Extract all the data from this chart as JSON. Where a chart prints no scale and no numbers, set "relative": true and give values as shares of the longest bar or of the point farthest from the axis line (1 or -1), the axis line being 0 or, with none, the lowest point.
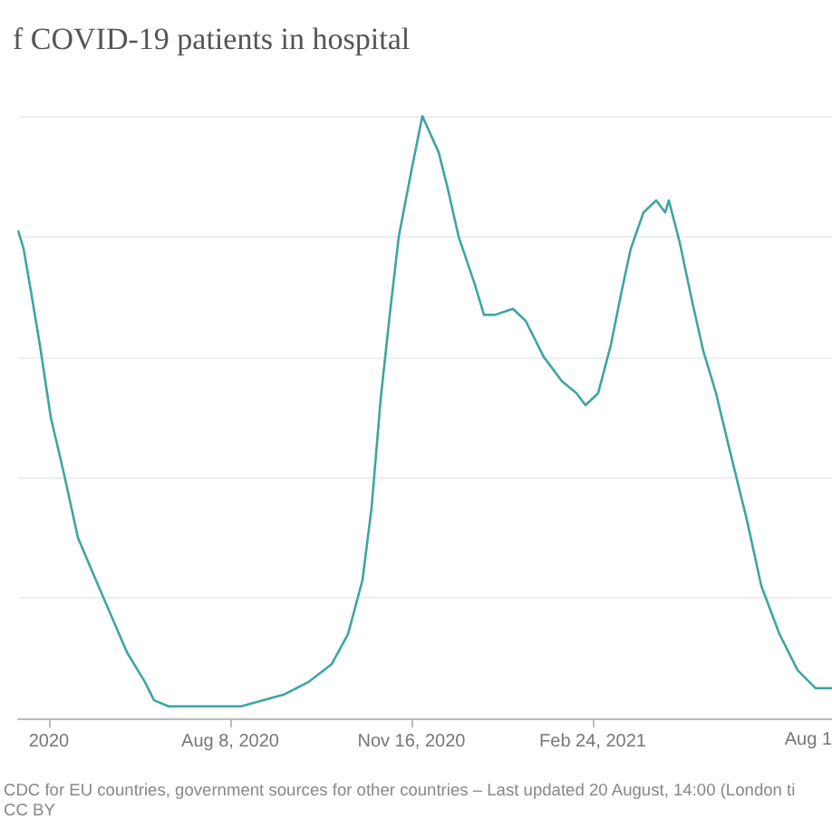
{
  "chart_data": {
    "type": "line",
    "title": "f COVID-19 patients in hospital",
    "relative": true,
    "grid": "y",
    "annotations": [
      "Aug 1",
      "CDC for EU countries, government sources for other countries – Last updated 20 August, 14:00 (London ti",
      "CC BY"
    ],
    "xlim": [
      "2020-04-13",
      "2021-07-06"
    ],
    "xticks": [
      {
        "value": "2020-04-30",
        "label": "2020"
      },
      {
        "value": "2020-08-08",
        "label": "Aug 8, 2020"
      },
      {
        "value": "2020-11-16",
        "label": "Nov 16, 2020"
      },
      {
        "value": "2021-02-24",
        "label": "Feb 24, 2021"
      }
    ],
    "x": [
      "2020-04-13",
      "2020-04-16",
      "2020-04-20",
      "2020-04-25",
      "2020-05-01",
      "2020-05-08",
      "2020-05-16",
      "2020-05-23",
      "2020-06-02",
      "2020-06-12",
      "2020-06-22",
      "2020-06-27",
      "2020-07-05",
      "2020-08-14",
      "2020-09-07",
      "2020-09-20",
      "2020-10-03",
      "2020-10-12",
      "2020-10-20",
      "2020-10-25",
      "2020-10-30",
      "2020-11-04",
      "2020-11-09",
      "2020-11-16",
      "2020-11-22",
      "2020-12-01",
      "2020-12-06",
      "2020-12-12",
      "2020-12-21",
      "2020-12-26",
      "2021-01-01",
      "2021-01-11",
      "2021-01-18",
      "2021-01-28",
      "2021-02-07",
      "2021-02-15",
      "2021-02-20",
      "2021-02-27",
      "2021-03-06",
      "2021-03-12",
      "2021-03-17",
      "2021-03-24",
      "2021-03-31",
      "2021-04-05",
      "2021-04-07",
      "2021-04-13",
      "2021-04-20",
      "2021-04-26",
      "2021-05-03",
      "2021-05-11",
      "2021-05-20",
      "2021-05-28",
      "2021-06-07",
      "2021-06-17",
      "2021-06-27",
      "2021-07-06"
    ],
    "series": [
      {
        "color": "#3fa5a0",
        "values": [
          0.81,
          0.78,
          0.71,
          0.62,
          0.5,
          0.41,
          0.3,
          0.25,
          0.18,
          0.11,
          0.06,
          0.03,
          0.02,
          0.02,
          0.04,
          0.06,
          0.09,
          0.14,
          0.23,
          0.35,
          0.53,
          0.67,
          0.8,
          0.91,
          1.0,
          0.94,
          0.88,
          0.8,
          0.72,
          0.67,
          0.67,
          0.68,
          0.66,
          0.6,
          0.56,
          0.54,
          0.52,
          0.54,
          0.62,
          0.71,
          0.78,
          0.84,
          0.86,
          0.84,
          0.86,
          0.79,
          0.69,
          0.61,
          0.54,
          0.44,
          0.33,
          0.22,
          0.14,
          0.08,
          0.05,
          0.05
        ]
      }
    ]
  }
}
